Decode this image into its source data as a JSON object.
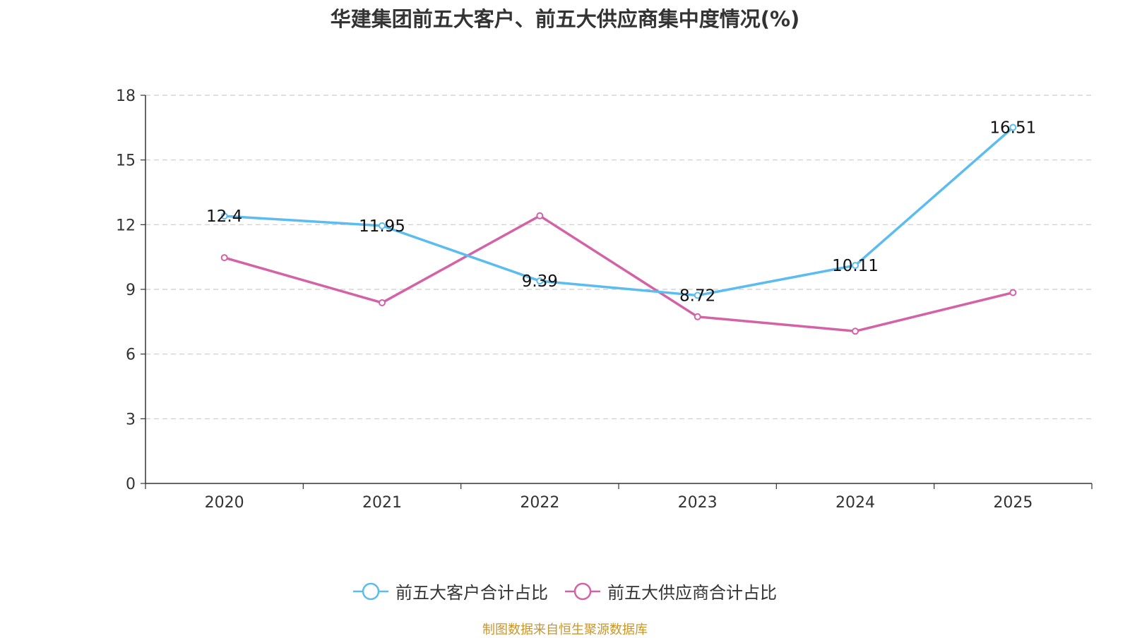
{
  "chart_data": {
    "type": "line",
    "title": "华建集团前五大客户、前五大供应商集中度情况(%)",
    "categories": [
      "2020",
      "2021",
      "2022",
      "2023",
      "2024",
      "2025"
    ],
    "ylim": [
      0,
      18
    ],
    "yticks": [
      0,
      3,
      6,
      9,
      12,
      15,
      18
    ],
    "ytick_labels": [
      "0",
      "3",
      "6",
      "9",
      "12",
      "15",
      "18"
    ],
    "grid": true,
    "legend_position": "bottom-center",
    "series": [
      {
        "name": "前五大客户合计占比",
        "color": "#5bbcf0",
        "values": [
          12.4,
          11.95,
          9.39,
          8.72,
          10.11,
          16.51
        ],
        "labels": [
          "12.4",
          "11.95",
          "9.39",
          "8.72",
          "10.11",
          "16.51"
        ]
      },
      {
        "name": "前五大供应商合计占比",
        "color": "#d462a6",
        "values": [
          10.47,
          8.38,
          12.41,
          7.73,
          7.06,
          8.85
        ]
      }
    ]
  },
  "source_note": "制图数据来自恒生聚源数据库"
}
